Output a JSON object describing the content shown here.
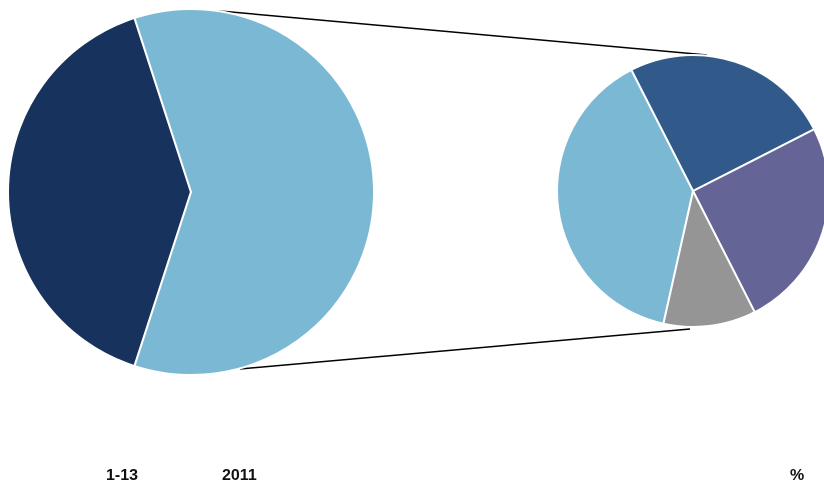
{
  "chart_data": {
    "type": "bar-of-pie",
    "main_pie": {
      "slices": [
        {
          "value": 40,
          "color": "#17325C"
        },
        {
          "value": 60,
          "color": "#7BB8D3"
        }
      ]
    },
    "secondary_pie": {
      "slices": [
        {
          "value": 25,
          "color": "#315A8A"
        },
        {
          "value": 25,
          "color": "#646497"
        },
        {
          "value": 11,
          "color": "#959595"
        },
        {
          "value": 39,
          "color": "#7BB8D3"
        }
      ]
    },
    "footer": {
      "code": "1-13",
      "year": "2011",
      "unit": "%"
    }
  }
}
